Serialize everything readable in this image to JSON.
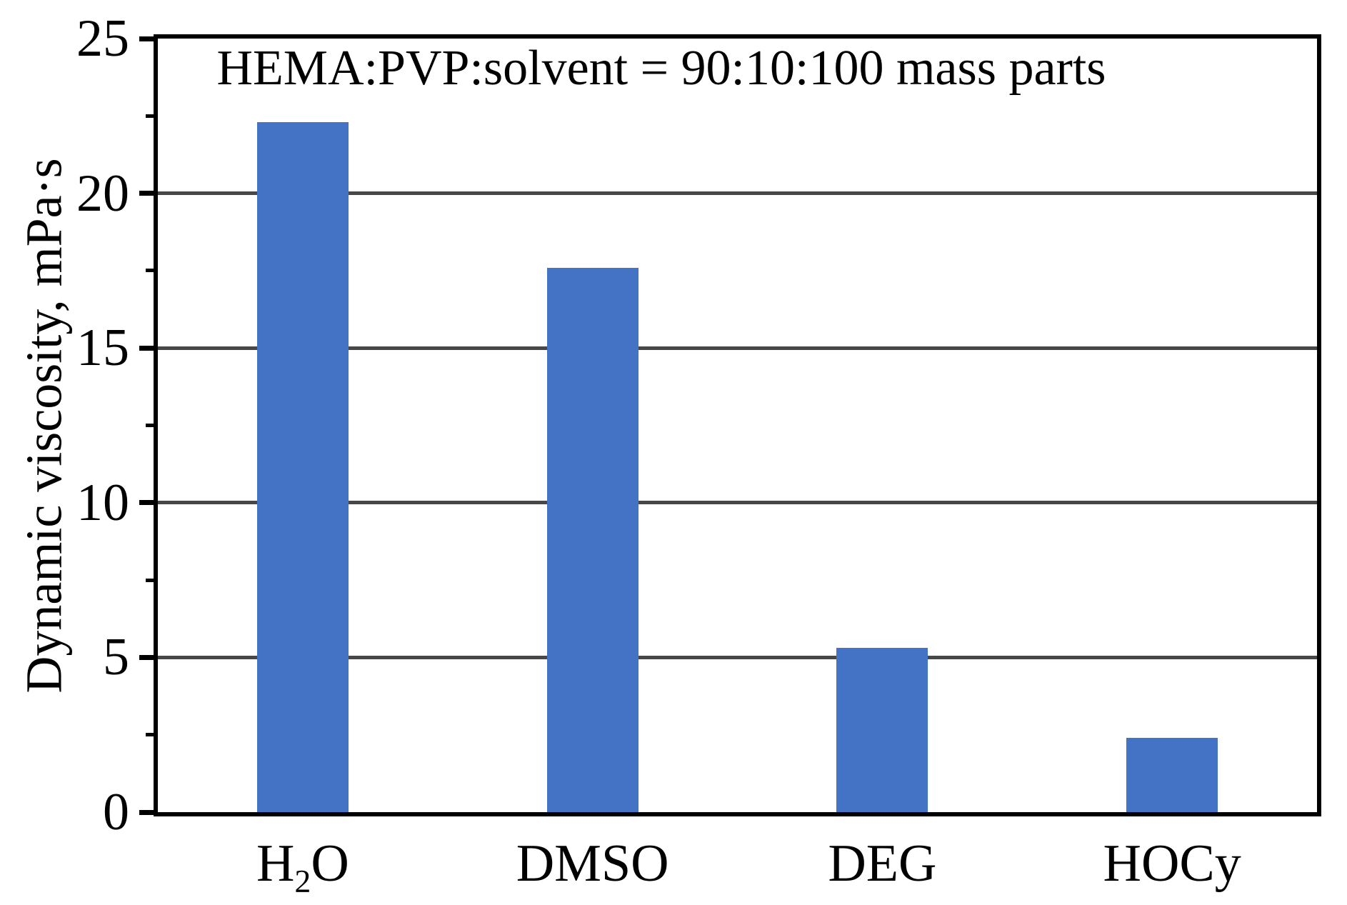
{
  "chart_data": {
    "type": "bar",
    "annotation": "HEMA:PVP:solvent = 90:10:100 mass parts",
    "ylabel": "Dynamic viscosity, mPa·s",
    "xlabel": "",
    "ylim": [
      0,
      25
    ],
    "ytick_major_values": [
      0,
      5,
      10,
      15,
      20,
      25
    ],
    "ytick_major_labels": [
      "0",
      "5",
      "10",
      "15",
      "20",
      "25"
    ],
    "ytick_minor_values": [
      2.5,
      7.5,
      12.5,
      17.5,
      22.5
    ],
    "gridline_values": [
      5,
      10,
      15,
      20
    ],
    "grid": "horizontal-major",
    "legend": "none",
    "categories": [
      "H2O",
      "DMSO",
      "DEG",
      "HOCy"
    ],
    "category_parts": [
      [
        {
          "t": "H"
        },
        {
          "t": "2",
          "sub": true
        },
        {
          "t": "O"
        }
      ],
      [
        {
          "t": "DMSO"
        }
      ],
      [
        {
          "t": "DEG"
        }
      ],
      [
        {
          "t": "HOCy"
        }
      ]
    ],
    "values": [
      22.3,
      17.6,
      5.3,
      2.4
    ],
    "colors": {
      "bar": "#4472C4",
      "gridline": "#474747",
      "axis": "#000000",
      "text": "#000000",
      "background": "#FFFFFF"
    }
  }
}
